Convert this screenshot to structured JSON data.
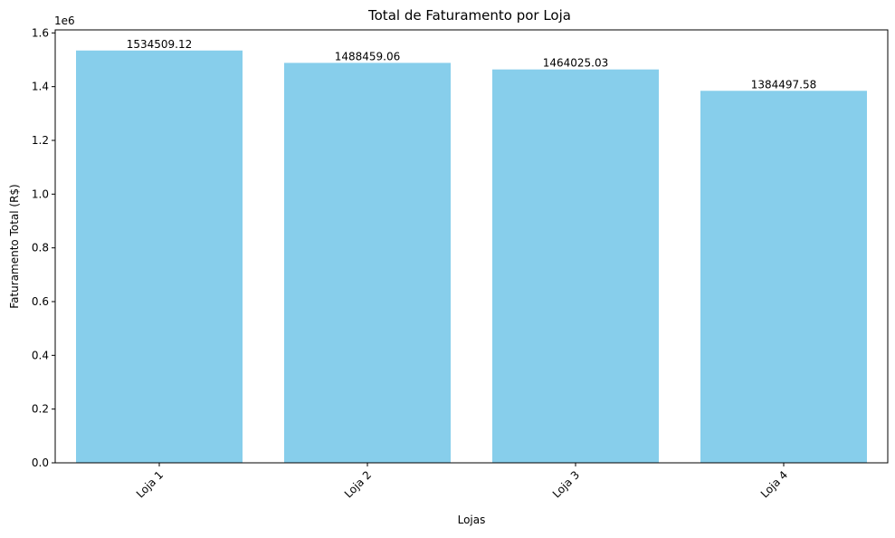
{
  "chart_data": {
    "type": "bar",
    "title": "Total de Faturamento por Loja",
    "xlabel": "Lojas",
    "ylabel": "Faturamento Total (R$)",
    "offset_label": "1e6",
    "categories": [
      "Loja 1",
      "Loja 2",
      "Loja 3",
      "Loja 4"
    ],
    "values": [
      1534509.12,
      1488459.06,
      1464025.03,
      1384497.58
    ],
    "data_labels": [
      "1534509.12",
      "1488459.06",
      "1464025.03",
      "1384497.58"
    ],
    "ylim": [
      0,
      1611234.58
    ],
    "yticks": [
      0,
      200000,
      400000,
      600000,
      800000,
      1000000,
      1200000,
      1400000,
      1600000
    ],
    "ytick_labels": [
      "0.0",
      "0.2",
      "0.4",
      "0.6",
      "0.8",
      "1.0",
      "1.2",
      "1.4",
      "1.6"
    ],
    "bar_color": "#87ceeb",
    "xtick_rotation_deg": 45,
    "grid": false,
    "legend": "none"
  }
}
